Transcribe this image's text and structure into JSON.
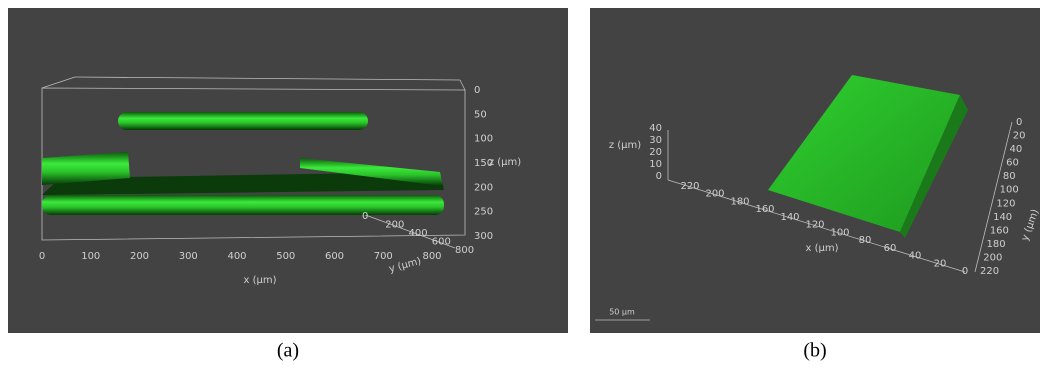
{
  "panels": [
    {
      "caption": "(a)",
      "x_axis": {
        "label": "x (µm)",
        "ticks": [
          "0",
          "100",
          "200",
          "300",
          "400",
          "500",
          "600",
          "700",
          "800"
        ]
      },
      "y_axis": {
        "label": "y (µm)",
        "ticks": [
          "0",
          "200",
          "400",
          "600",
          "800"
        ]
      },
      "z_axis": {
        "label": "z (µm)",
        "ticks": [
          "0",
          "50",
          "100",
          "150",
          "200",
          "250",
          "300"
        ]
      }
    },
    {
      "caption": "(b)",
      "x_axis": {
        "label": "x (µm)",
        "ticks": [
          "220",
          "200",
          "180",
          "160",
          "140",
          "120",
          "100",
          "80",
          "60",
          "40",
          "20",
          "0"
        ]
      },
      "y_axis": {
        "label": "y (µm)",
        "ticks": [
          "0",
          "20",
          "40",
          "60",
          "80",
          "100",
          "120",
          "140",
          "160",
          "180",
          "200",
          "220"
        ]
      },
      "z_axis": {
        "label": "z (µm)",
        "ticks": [
          "0",
          "10",
          "20",
          "30",
          "40"
        ]
      },
      "scale_bar": "50 µm"
    }
  ]
}
